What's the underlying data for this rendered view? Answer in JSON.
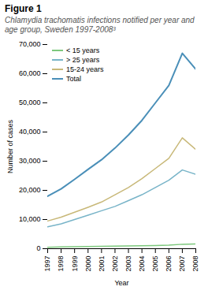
{
  "chart_data": {
    "type": "line",
    "title": "Figure 1",
    "subtitle": "Chlamydia trachomatis infections notified per year and\nage group, Sweden 1997-2008³",
    "x_label": "Year",
    "y_label": "Number of cases",
    "x": [
      1997,
      1998,
      1999,
      2000,
      2001,
      2002,
      2003,
      2004,
      2005,
      2006,
      2007,
      2008
    ],
    "series": [
      {
        "name": "< 15 years",
        "color": "#7dc87d",
        "values": [
          500,
          620,
          700,
          760,
          820,
          870,
          940,
          1020,
          1100,
          1230,
          1520,
          1650
        ]
      },
      {
        "name": "> 25 years",
        "color": "#78b4c8",
        "values": [
          7500,
          8500,
          10000,
          11500,
          13000,
          14500,
          16500,
          18500,
          21000,
          23500,
          27000,
          25500
        ]
      },
      {
        "name": "15-24 years",
        "color": "#c8b878",
        "values": [
          9500,
          10800,
          12500,
          14200,
          16000,
          18500,
          21000,
          24000,
          27500,
          31000,
          38000,
          34000
        ]
      },
      {
        "name": "Total",
        "color": "#4a8fb8",
        "values": [
          18000,
          20500,
          23800,
          27200,
          30500,
          34500,
          39000,
          44000,
          50000,
          56000,
          67000,
          61500
        ]
      }
    ],
    "xlim": [
      1997,
      2008
    ],
    "xticks": [
      1997,
      1998,
      1999,
      2000,
      2001,
      2002,
      2003,
      2004,
      2005,
      2006,
      2007,
      2008
    ],
    "ylim": [
      0,
      70000
    ],
    "yticks": [
      0,
      {
        "value": 10000,
        "label": "10,000"
      },
      {
        "value": 20000,
        "label": "20,000"
      },
      {
        "value": 30000,
        "label": "30,000"
      },
      {
        "value": 40000,
        "label": "40,000"
      },
      {
        "value": 50000,
        "label": "50,000"
      },
      {
        "value": 60000,
        "label": "60,000"
      },
      {
        "value": 70000,
        "label": "70,000"
      }
    ],
    "grid": false,
    "legend": "upper left"
  }
}
